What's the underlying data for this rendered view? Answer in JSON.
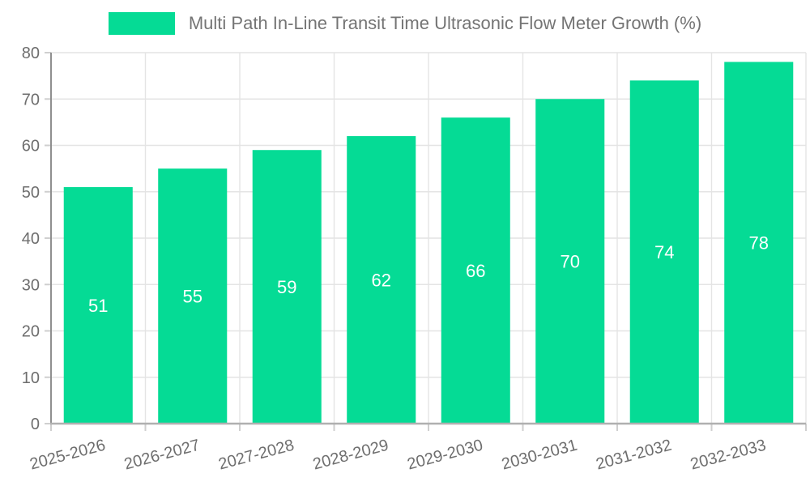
{
  "chart_data": {
    "type": "bar",
    "legend": [
      "Multi Path In-Line Transit Time Ultrasonic Flow Meter Growth (%)"
    ],
    "categories": [
      "2025-2026",
      "2026-2027",
      "2027-2028",
      "2028-2029",
      "2029-2030",
      "2030-2031",
      "2031-2032",
      "2032-2033"
    ],
    "values": [
      51,
      55,
      59,
      62,
      66,
      70,
      74,
      78
    ],
    "xlabel": "",
    "ylabel": "",
    "ylim": [
      0,
      80
    ],
    "ytick_step": 10,
    "grid": true,
    "legend_position": "top",
    "x_label_rotation_deg": -15,
    "bar_color": "#05DB95",
    "value_label_color": "#ffffff",
    "axis_text_color": "#6e6e6e",
    "legend_text_color": "#747474",
    "grid_color": "#e4e4e4",
    "tick_color": "#cfcfcf",
    "y_axis_line_color": "#8f8f8f",
    "x_axis_line_color": "#b0b0b0",
    "background_color": "#ffffff"
  }
}
